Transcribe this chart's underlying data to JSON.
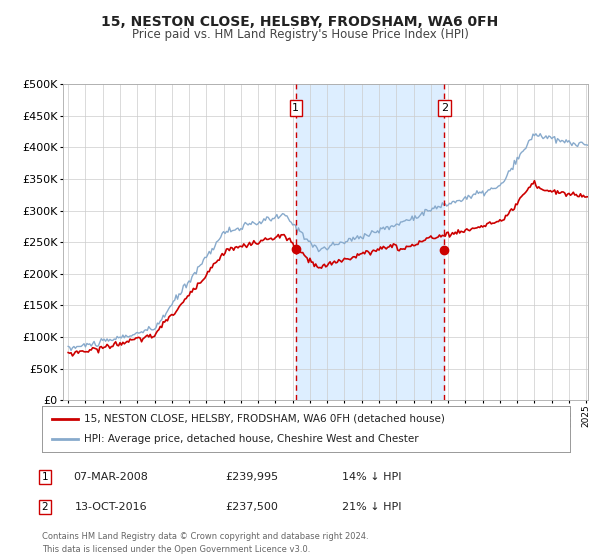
{
  "title": "15, NESTON CLOSE, HELSBY, FRODSHAM, WA6 0FH",
  "subtitle": "Price paid vs. HM Land Registry's House Price Index (HPI)",
  "legend_line1": "15, NESTON CLOSE, HELSBY, FRODSHAM, WA6 0FH (detached house)",
  "legend_line2": "HPI: Average price, detached house, Cheshire West and Chester",
  "annotation1_label": "1",
  "annotation1_date": "07-MAR-2008",
  "annotation1_price": "£239,995",
  "annotation1_hpi": "14% ↓ HPI",
  "annotation2_label": "2",
  "annotation2_date": "13-OCT-2016",
  "annotation2_price": "£237,500",
  "annotation2_hpi": "21% ↓ HPI",
  "footer": "Contains HM Land Registry data © Crown copyright and database right 2024.\nThis data is licensed under the Open Government Licence v3.0.",
  "sale1_year": 2008.18,
  "sale1_value": 239995,
  "sale2_year": 2016.78,
  "sale2_value": 237500,
  "price_line_color": "#cc0000",
  "hpi_line_color": "#88aacc",
  "vline_color": "#cc0000",
  "shade_color": "#ddeeff",
  "background_color": "#ffffff",
  "grid_color": "#cccccc",
  "ylim_max": 500000,
  "ylim_min": 0,
  "xlabel_start": 1995,
  "xlabel_end": 2025,
  "fig_width": 6.0,
  "fig_height": 5.6,
  "dpi": 100
}
